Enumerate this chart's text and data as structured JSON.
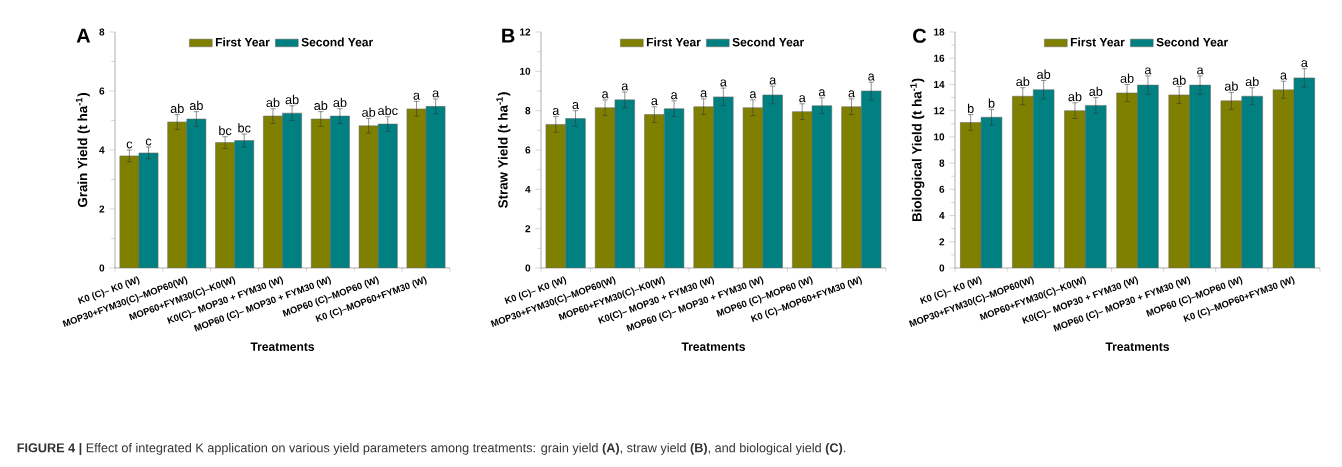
{
  "chart_data": [
    {
      "type": "bar",
      "title": "A",
      "xlabel": "Treatments",
      "ylabel": "Grain Yield (t ha$^{-1}$)",
      "legend": "top",
      "categories": [
        "K0 (C)– K0 (W)",
        "MOP30+FYM30(C)–MOP60(W)",
        "MOP60+FYM30(C)–K0(W)",
        "K0(C)– MOP30 + FYM30 (W)",
        "MOP60 (C)– MOP30 + FYM30 (W)",
        "MOP60 (C)–MOP60 (W)",
        "K0 (C)–MOP60+FYM30 (W)"
      ],
      "series": [
        {
          "name": "First Year",
          "color": "#808000",
          "values": [
            3.8,
            4.95,
            4.25,
            5.15,
            5.05,
            4.82,
            5.4
          ],
          "errors": [
            0.2,
            0.25,
            0.2,
            0.25,
            0.25,
            0.25,
            0.25
          ],
          "value_labels": [
            "c",
            "ab",
            "bc",
            "ab",
            "ab",
            "ab",
            "a"
          ]
        },
        {
          "name": "Second Year",
          "color": "#008080",
          "values": [
            3.9,
            5.05,
            4.32,
            5.25,
            5.15,
            4.88,
            5.48
          ],
          "errors": [
            0.2,
            0.25,
            0.22,
            0.25,
            0.25,
            0.25,
            0.25
          ],
          "value_labels": [
            "c",
            "ab",
            "bc",
            "ab",
            "ab",
            "abc",
            "a"
          ]
        }
      ],
      "ylim": [
        0,
        8
      ],
      "yticks": [
        0,
        2,
        4,
        6,
        8
      ],
      "annotations": [
        "**FIGURE 4 |** Effect of integrated K application on various yield parameters among treatments: grain yield **(A)**, straw yield **(B)**, and biological yield **(C)**."
      ]
    },
    {
      "type": "bar",
      "title": "B",
      "xlabel": "Treatments",
      "ylabel": "Straw Yield (t ha$^{-1}$)",
      "legend": "top",
      "categories": [
        "K0 (C)– K0 (W)",
        "MOP30+FYM30(C)–MOP60(W)",
        "MOP60+FYM30(C)–K0(W)",
        "K0(C)– MOP30 + FYM30 (W)",
        "MOP60 (C)– MOP30 + FYM30 (W)",
        "MOP60 (C)–MOP60 (W)",
        "K0 (C)–MOP60+FYM30 (W)"
      ],
      "series": [
        {
          "name": "First Year",
          "color": "#808000",
          "values": [
            7.3,
            8.15,
            7.8,
            8.2,
            8.15,
            7.95,
            8.2
          ],
          "errors": [
            0.4,
            0.4,
            0.4,
            0.4,
            0.4,
            0.4,
            0.4
          ],
          "value_labels": [
            "a",
            "a",
            "a",
            "a",
            "a",
            "a",
            "a"
          ]
        },
        {
          "name": "Second Year",
          "color": "#008080",
          "values": [
            7.6,
            8.55,
            8.1,
            8.7,
            8.8,
            8.25,
            9.0
          ],
          "errors": [
            0.4,
            0.4,
            0.4,
            0.45,
            0.45,
            0.4,
            0.45
          ],
          "value_labels": [
            "a",
            "a",
            "a",
            "a",
            "a",
            "a",
            "a"
          ]
        }
      ],
      "ylim": [
        0,
        12
      ],
      "yticks": [
        0,
        2,
        4,
        6,
        8,
        10,
        12
      ]
    },
    {
      "type": "bar",
      "title": "C",
      "xlabel": "Treatments",
      "ylabel": "Biological Yield (t ha$^{-1}$)",
      "legend": "top",
      "categories": [
        "K0 (C)– K0 (W)",
        "MOP30+FYM30(C)–MOP60(W)",
        "MOP60+FYM30(C)–K0(W)",
        "K0(C)– MOP30 + FYM30 (W)",
        "MOP60 (C)– MOP30 + FYM30 (W)",
        "MOP60 (C)–MOP60 (W)",
        "K0 (C)–MOP60+FYM30 (W)"
      ],
      "series": [
        {
          "name": "First Year",
          "color": "#808000",
          "values": [
            11.1,
            13.1,
            12.0,
            13.35,
            13.2,
            12.75,
            13.6
          ],
          "errors": [
            0.6,
            0.65,
            0.6,
            0.65,
            0.65,
            0.65,
            0.65
          ],
          "value_labels": [
            "b",
            "ab",
            "ab",
            "ab",
            "ab",
            "ab",
            "a"
          ]
        },
        {
          "name": "Second Year",
          "color": "#008080",
          "values": [
            11.5,
            13.6,
            12.4,
            13.95,
            13.95,
            13.1,
            14.5
          ],
          "errors": [
            0.6,
            0.7,
            0.6,
            0.7,
            0.7,
            0.65,
            0.7
          ],
          "value_labels": [
            "b",
            "ab",
            "ab",
            "a",
            "a",
            "ab",
            "a"
          ]
        }
      ],
      "ylim": [
        0,
        18
      ],
      "yticks": [
        0,
        2,
        4,
        6,
        8,
        10,
        12,
        14,
        16,
        18
      ]
    }
  ]
}
